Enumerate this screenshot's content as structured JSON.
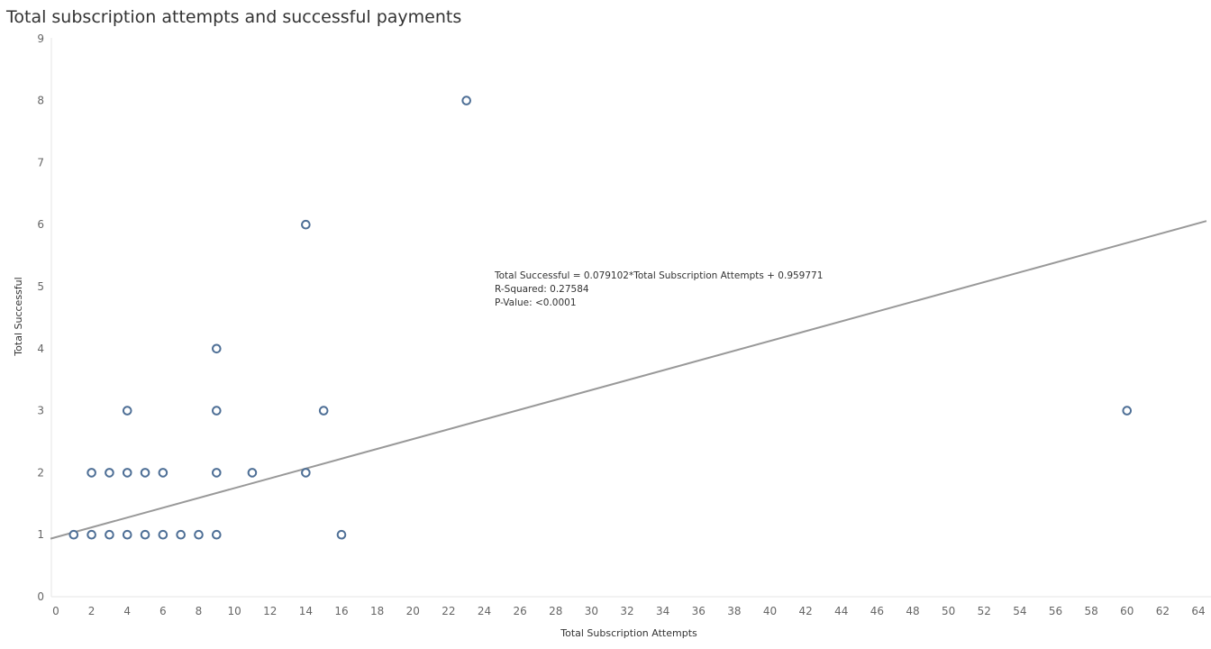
{
  "chart_data": {
    "type": "scatter",
    "title": "Total subscription attempts and successful payments",
    "xlabel": "Total Subscription Attempts",
    "ylabel": "Total Successful",
    "xlim": [
      0,
      64
    ],
    "ylim": [
      0,
      9
    ],
    "x_ticks": [
      0,
      2,
      4,
      6,
      8,
      10,
      12,
      14,
      16,
      18,
      20,
      22,
      24,
      26,
      28,
      30,
      32,
      34,
      36,
      38,
      40,
      42,
      44,
      46,
      48,
      50,
      52,
      54,
      56,
      58,
      60,
      62,
      64
    ],
    "y_ticks": [
      0,
      1,
      2,
      3,
      4,
      5,
      6,
      7,
      8,
      9
    ],
    "grid": false,
    "points": [
      {
        "x": 1,
        "y": 1
      },
      {
        "x": 2,
        "y": 1
      },
      {
        "x": 3,
        "y": 1
      },
      {
        "x": 4,
        "y": 1
      },
      {
        "x": 5,
        "y": 1
      },
      {
        "x": 6,
        "y": 1
      },
      {
        "x": 7,
        "y": 1
      },
      {
        "x": 8,
        "y": 1
      },
      {
        "x": 9,
        "y": 1
      },
      {
        "x": 16,
        "y": 1
      },
      {
        "x": 2,
        "y": 2
      },
      {
        "x": 3,
        "y": 2
      },
      {
        "x": 4,
        "y": 2
      },
      {
        "x": 5,
        "y": 2
      },
      {
        "x": 6,
        "y": 2
      },
      {
        "x": 9,
        "y": 2
      },
      {
        "x": 11,
        "y": 2
      },
      {
        "x": 14,
        "y": 2
      },
      {
        "x": 4,
        "y": 3
      },
      {
        "x": 9,
        "y": 3
      },
      {
        "x": 15,
        "y": 3
      },
      {
        "x": 60,
        "y": 3
      },
      {
        "x": 9,
        "y": 4
      },
      {
        "x": 14,
        "y": 6
      },
      {
        "x": 23,
        "y": 8
      }
    ],
    "trendline": {
      "slope": 0.079102,
      "intercept": 0.959771,
      "equation": "Total Successful = 0.079102*Total Subscription Attempts + 0.959771",
      "r_squared": "R-Squared: 0.27584",
      "p_value": "P-Value: <0.0001"
    },
    "colors": {
      "marker": "#4e6f96",
      "trendline": "#999999",
      "axis": "#e6e6e6"
    }
  }
}
